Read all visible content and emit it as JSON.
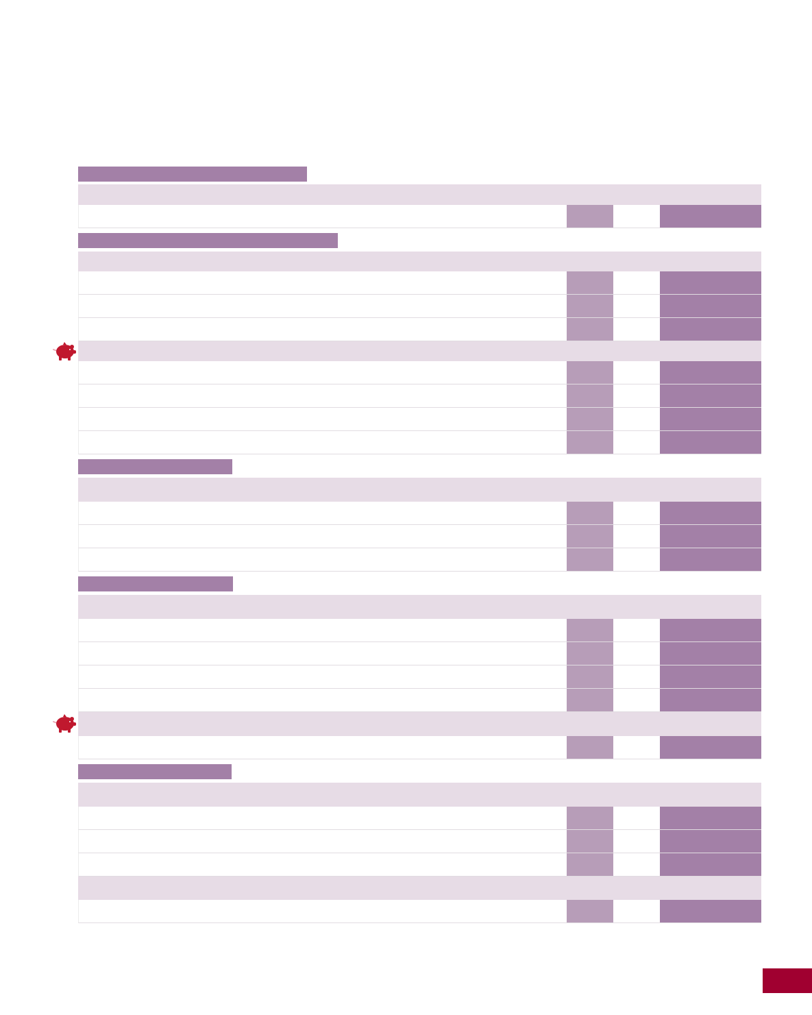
{
  "sections": [
    {
      "title": "",
      "groups": [
        {
          "heading": "",
          "icon": null,
          "rows": [
            {
              "label": "",
              "a": "",
              "b": "",
              "c": ""
            }
          ]
        }
      ]
    },
    {
      "title": "",
      "groups": [
        {
          "heading": "",
          "icon": null,
          "rows": [
            {
              "label": "",
              "a": "",
              "b": "",
              "c": ""
            },
            {
              "label": "",
              "a": "",
              "b": "",
              "c": ""
            },
            {
              "label": "",
              "a": "",
              "b": "",
              "c": ""
            }
          ]
        },
        {
          "heading": "",
          "icon": "piggy-bank-icon",
          "rows": [
            {
              "label": "",
              "a": "",
              "b": "",
              "c": ""
            },
            {
              "label": "",
              "a": "",
              "b": "",
              "c": ""
            },
            {
              "label": "",
              "a": "",
              "b": "",
              "c": ""
            },
            {
              "label": "",
              "a": "",
              "b": "",
              "c": ""
            }
          ]
        }
      ]
    },
    {
      "title": "",
      "groups": [
        {
          "heading": "",
          "icon": null,
          "rows": [
            {
              "label": "",
              "a": "",
              "b": "",
              "c": ""
            },
            {
              "label": "",
              "a": "",
              "b": "",
              "c": ""
            },
            {
              "label": "",
              "a": "",
              "b": "",
              "c": ""
            }
          ]
        }
      ]
    },
    {
      "title": "",
      "groups": [
        {
          "heading": "",
          "icon": null,
          "rows": [
            {
              "label": "",
              "a": "",
              "b": "",
              "c": ""
            },
            {
              "label": "",
              "a": "",
              "b": "",
              "c": ""
            },
            {
              "label": "",
              "a": "",
              "b": "",
              "c": ""
            },
            {
              "label": "",
              "a": "",
              "b": "",
              "c": ""
            }
          ]
        },
        {
          "heading": "",
          "icon": "piggy-bank-icon",
          "rows": [
            {
              "label": "",
              "a": "",
              "b": "",
              "c": ""
            }
          ]
        }
      ]
    },
    {
      "title": "",
      "groups": [
        {
          "heading": "",
          "icon": null,
          "rows": [
            {
              "label": "",
              "a": "",
              "b": "",
              "c": ""
            },
            {
              "label": "",
              "a": "",
              "b": "",
              "c": ""
            },
            {
              "label": "",
              "a": "",
              "b": "",
              "c": ""
            }
          ]
        },
        {
          "heading": "",
          "icon": null,
          "rows": [
            {
              "label": "",
              "a": "",
              "b": "",
              "c": ""
            }
          ]
        }
      ]
    }
  ],
  "page_number": "",
  "colors": {
    "section_bar": "#a380a7",
    "subhead_band": "#e7dce6",
    "cell_light": "#b79db8",
    "cell_dark": "#a380a7",
    "page_tab": "#a00030",
    "pig_icon": "#c0182e"
  }
}
